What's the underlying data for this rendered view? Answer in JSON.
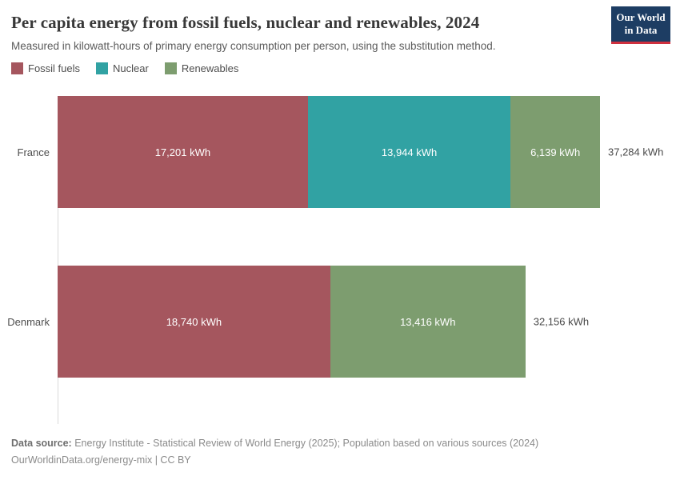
{
  "header": {
    "title": "Per capita energy from fossil fuels, nuclear and renewables, 2024",
    "subtitle": "Measured in kilowatt-hours of primary energy consumption per person, using the substitution method.",
    "logo": {
      "line1": "Our World",
      "line2": "in Data",
      "bg_color": "#1d3d63",
      "accent_color": "#cf303e"
    }
  },
  "legend": [
    {
      "label": "Fossil fuels",
      "color": "#a5565e"
    },
    {
      "label": "Nuclear",
      "color": "#31a2a3"
    },
    {
      "label": "Renewables",
      "color": "#7d9d6f"
    }
  ],
  "chart_data": {
    "type": "bar",
    "orientation": "horizontal",
    "stacked": true,
    "unit": "kWh",
    "categories": [
      "France",
      "Denmark"
    ],
    "series": [
      {
        "name": "Fossil fuels",
        "color": "#a5565e",
        "values": [
          17201,
          18740
        ],
        "labels": [
          "17,201 kWh",
          "18,740 kWh"
        ]
      },
      {
        "name": "Nuclear",
        "color": "#31a2a3",
        "values": [
          13944,
          0
        ],
        "labels": [
          "13,944 kWh",
          null
        ]
      },
      {
        "name": "Renewables",
        "color": "#7d9d6f",
        "values": [
          6139,
          13416
        ],
        "labels": [
          "6,139 kWh",
          "13,416 kWh"
        ]
      }
    ],
    "totals": [
      37284,
      32156
    ],
    "total_labels": [
      "37,284 kWh",
      "32,156 kWh"
    ],
    "xlim": [
      0,
      37284
    ],
    "grid": false,
    "legend_position": "top"
  },
  "footer": {
    "source_label": "Data source:",
    "source_text": " Energy Institute - Statistical Review of World Energy (2025); Population based on various sources (2024)",
    "license": "OurWorldinData.org/energy-mix | CC BY"
  }
}
